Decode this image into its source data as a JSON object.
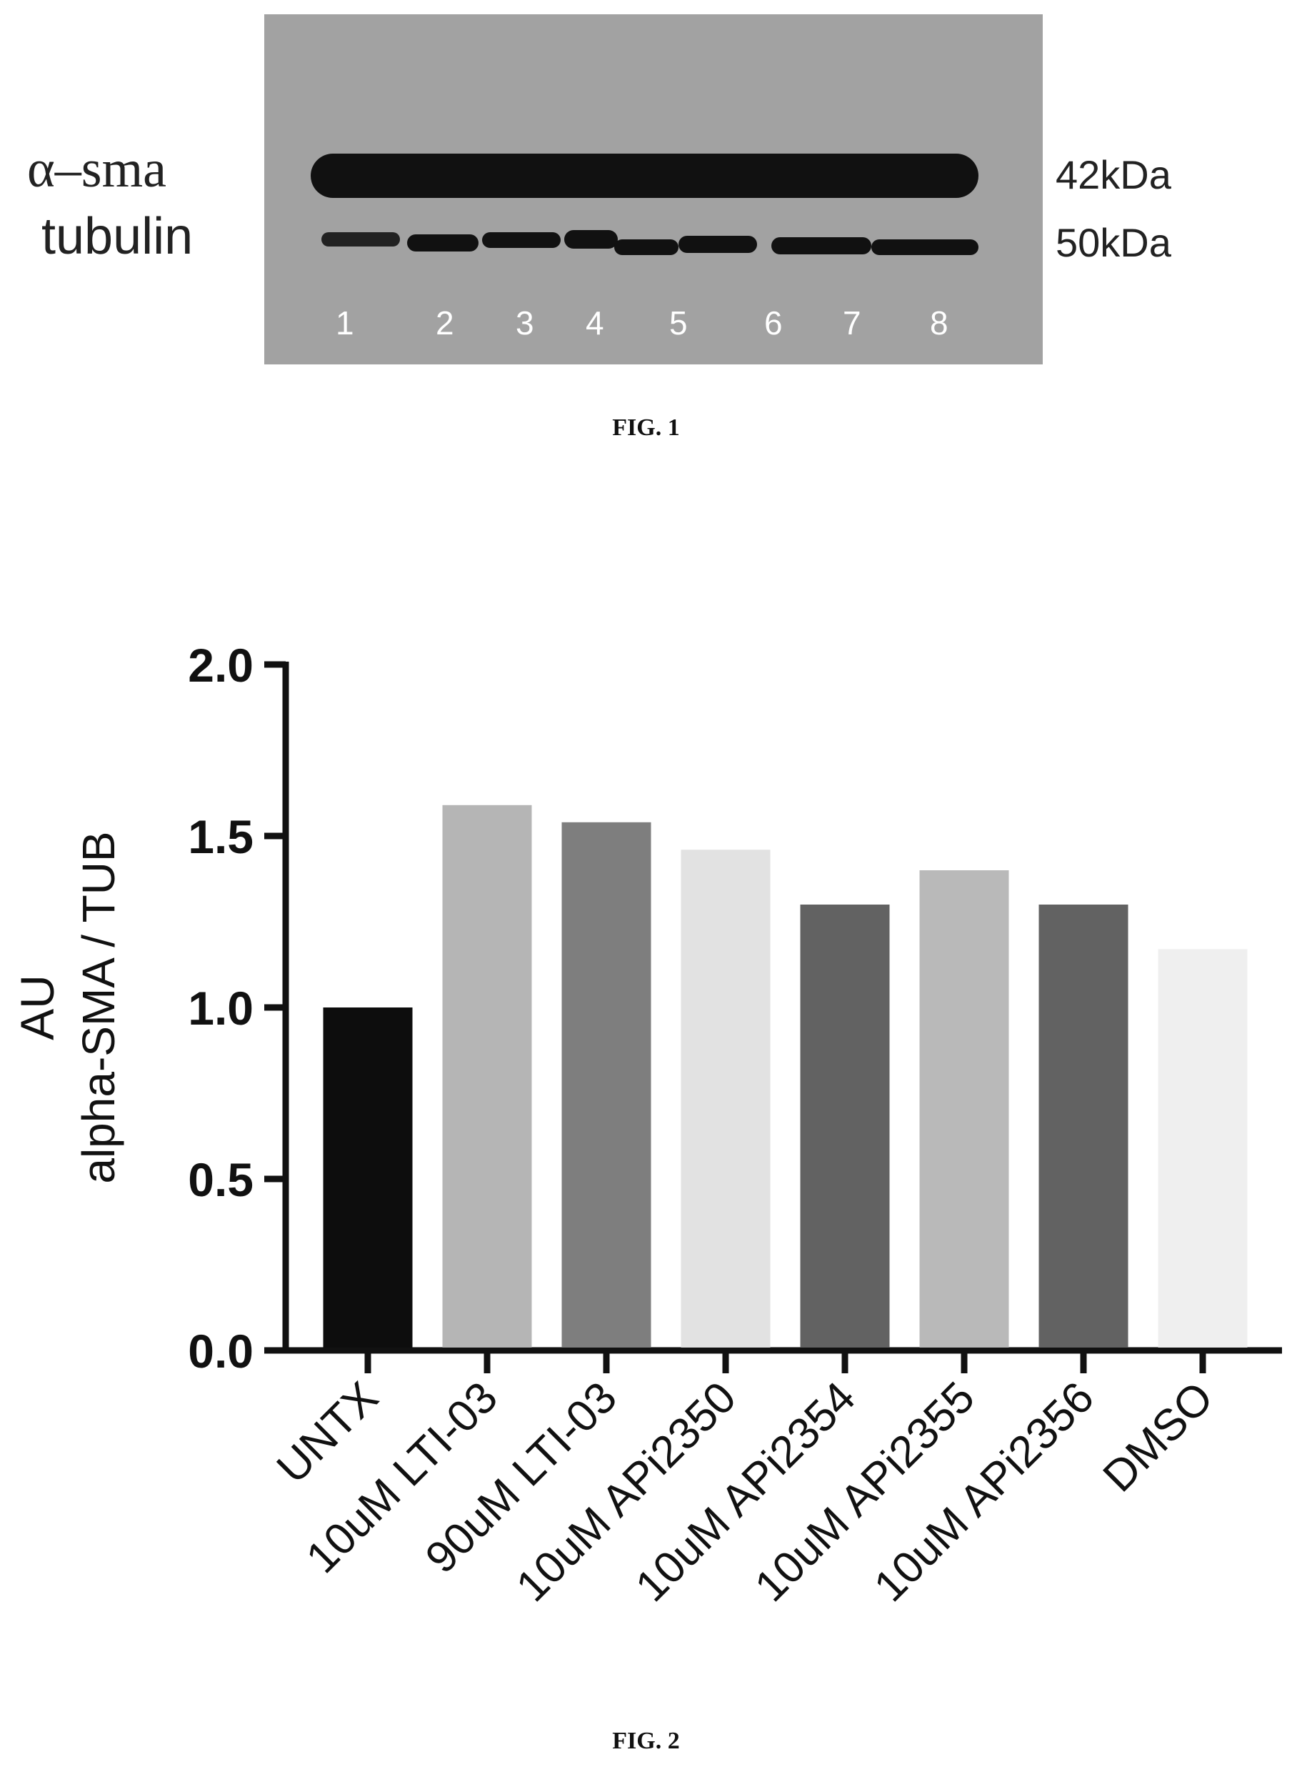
{
  "fig1": {
    "caption": "FIG. 1",
    "row_labels": [
      "α–sma",
      "tubulin"
    ],
    "mw_labels": [
      "42kDa",
      "50kDa"
    ],
    "lanes": [
      "1",
      "2",
      "3",
      "4",
      "5",
      "6",
      "7",
      "8"
    ]
  },
  "fig2": {
    "caption": "FIG. 2"
  },
  "chart_data": {
    "type": "bar",
    "title": "",
    "ylabel": "AU\nalpha-SMA / TUB",
    "ylabel_lines": [
      "AU",
      "alpha-SMA / TUB"
    ],
    "xlabel": "",
    "categories": [
      "UNTX",
      "10uM LTI-03",
      "90uM LTI-03",
      "10uM APi2350",
      "10uM APi2354",
      "10uM APi2355",
      "10uM APi2356",
      "DMSO"
    ],
    "values": [
      1.0,
      1.59,
      1.54,
      1.46,
      1.3,
      1.4,
      1.3,
      1.17
    ],
    "bar_colors": [
      "#0d0d0d",
      "#b5b5b5",
      "#7e7e7e",
      "#e2e2e2",
      "#626262",
      "#b9b9b9",
      "#626262",
      "#efefef"
    ],
    "ylim": [
      0,
      2.0
    ],
    "yticks": [
      "0.0",
      "0.5",
      "1.0",
      "1.5",
      "2.0"
    ],
    "grid": false,
    "legend": "none"
  }
}
